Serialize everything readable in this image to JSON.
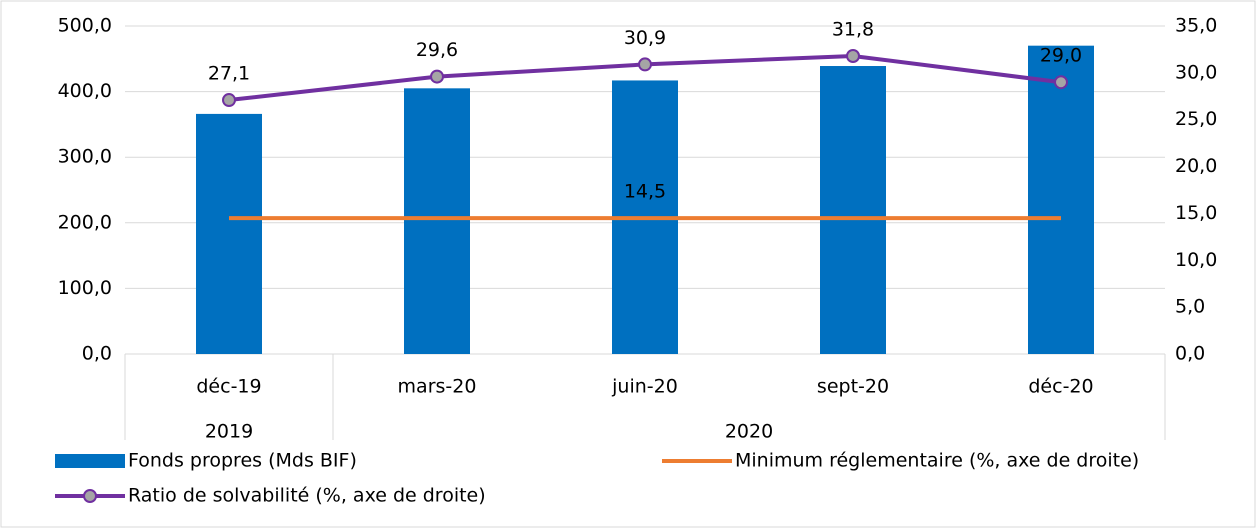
{
  "chart_data": {
    "type": "bar_line",
    "categories": [
      "déc-19",
      "mars-20",
      "juin-20",
      "sept-20",
      "déc-20"
    ],
    "groups": [
      {
        "name": "2019",
        "count": 1
      },
      {
        "name": "2020",
        "count": 4
      }
    ],
    "series": [
      {
        "name": "Fonds propres (Mds BIF)",
        "type": "bar",
        "color": "#0070c0",
        "values": [
          366,
          405,
          417,
          439,
          470
        ]
      },
      {
        "name": "Minimum réglementaire (%, axe de droite)",
        "type": "line",
        "axis": "y2",
        "color": "#ed7d31",
        "values": [
          14.5,
          14.5,
          14.5,
          14.5,
          14.5
        ],
        "value_labels": [
          null,
          null,
          "14,5",
          null,
          null
        ]
      },
      {
        "name": "Ratio de solvabilité (%, axe de droite)",
        "type": "line",
        "axis": "y2",
        "color": "#7030a0",
        "marker_color": "#a5a5a5",
        "values": [
          27.1,
          29.6,
          30.9,
          31.8,
          29.0
        ],
        "value_labels": [
          "27,1",
          "29,6",
          "30,9",
          "31,8",
          "29,0"
        ]
      }
    ],
    "ylim": [
      0,
      500
    ],
    "yticks": [
      {
        "value": 0,
        "label": "0,0"
      },
      {
        "value": 100,
        "label": "100,0"
      },
      {
        "value": 200,
        "label": "200,0"
      },
      {
        "value": 300,
        "label": "300,0"
      },
      {
        "value": 400,
        "label": "400,0"
      },
      {
        "value": 500,
        "label": "500,0"
      }
    ],
    "y2lim": [
      0,
      35
    ],
    "y2ticks": [
      {
        "value": 0,
        "label": "0,0"
      },
      {
        "value": 5,
        "label": "5,0"
      },
      {
        "value": 10,
        "label": "10,0"
      },
      {
        "value": 15,
        "label": "15,0"
      },
      {
        "value": 20,
        "label": "20,0"
      },
      {
        "value": 25,
        "label": "25,0"
      },
      {
        "value": 30,
        "label": "30,0"
      },
      {
        "value": 35,
        "label": "35,0"
      }
    ],
    "grid": true
  }
}
